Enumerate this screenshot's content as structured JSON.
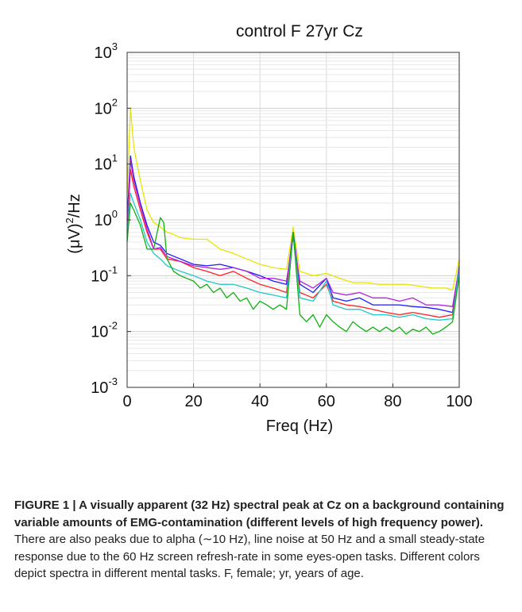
{
  "chart_data": {
    "type": "line",
    "title": "control F 27yr Cz",
    "xlabel": "Freq (Hz)",
    "ylabel_base": "(μV)",
    "ylabel_sup": "2",
    "ylabel_tail": "/Hz",
    "xlim": [
      0,
      100
    ],
    "ylim": [
      0.001,
      1000
    ],
    "yscale": "log",
    "grid": true,
    "x_ticks": [
      "0",
      "20",
      "40",
      "60",
      "80",
      "100"
    ],
    "y_ticks": [
      {
        "base": "10",
        "exp": "-3"
      },
      {
        "base": "10",
        "exp": "-2"
      },
      {
        "base": "10",
        "exp": "-1"
      },
      {
        "base": "10",
        "exp": "0"
      },
      {
        "base": "10",
        "exp": "1"
      },
      {
        "base": "10",
        "exp": "2"
      },
      {
        "base": "10",
        "exp": "3"
      }
    ],
    "series": [
      {
        "color": "#e6e600",
        "points": [
          [
            0,
            3
          ],
          [
            1,
            100
          ],
          [
            2,
            20
          ],
          [
            4,
            5
          ],
          [
            6,
            1.5
          ],
          [
            8,
            0.9
          ],
          [
            10,
            0.75
          ],
          [
            12,
            0.6
          ],
          [
            14,
            0.55
          ],
          [
            16,
            0.48
          ],
          [
            20,
            0.45
          ],
          [
            24,
            0.45
          ],
          [
            28,
            0.3
          ],
          [
            32,
            0.25
          ],
          [
            36,
            0.2
          ],
          [
            40,
            0.16
          ],
          [
            44,
            0.14
          ],
          [
            48,
            0.13
          ],
          [
            50,
            0.75
          ],
          [
            52,
            0.12
          ],
          [
            56,
            0.1
          ],
          [
            60,
            0.11
          ],
          [
            64,
            0.09
          ],
          [
            68,
            0.075
          ],
          [
            72,
            0.075
          ],
          [
            76,
            0.07
          ],
          [
            80,
            0.07
          ],
          [
            84,
            0.07
          ],
          [
            88,
            0.065
          ],
          [
            92,
            0.06
          ],
          [
            96,
            0.06
          ],
          [
            98,
            0.055
          ],
          [
            100,
            0.2
          ]
        ]
      },
      {
        "color": "#1a1aff",
        "points": [
          [
            0,
            1
          ],
          [
            1,
            14
          ],
          [
            2,
            6
          ],
          [
            4,
            2
          ],
          [
            6,
            0.8
          ],
          [
            8,
            0.4
          ],
          [
            10,
            0.35
          ],
          [
            12,
            0.25
          ],
          [
            16,
            0.2
          ],
          [
            20,
            0.16
          ],
          [
            24,
            0.15
          ],
          [
            28,
            0.16
          ],
          [
            32,
            0.14
          ],
          [
            36,
            0.12
          ],
          [
            40,
            0.1
          ],
          [
            44,
            0.08
          ],
          [
            48,
            0.07
          ],
          [
            50,
            0.6
          ],
          [
            52,
            0.07
          ],
          [
            56,
            0.05
          ],
          [
            60,
            0.09
          ],
          [
            62,
            0.04
          ],
          [
            66,
            0.035
          ],
          [
            70,
            0.04
          ],
          [
            74,
            0.03
          ],
          [
            78,
            0.03
          ],
          [
            82,
            0.03
          ],
          [
            86,
            0.028
          ],
          [
            90,
            0.027
          ],
          [
            94,
            0.025
          ],
          [
            98,
            0.022
          ],
          [
            100,
            0.15
          ]
        ]
      },
      {
        "color": "#ff2020",
        "points": [
          [
            0,
            0.6
          ],
          [
            1,
            8
          ],
          [
            2,
            4
          ],
          [
            4,
            1.5
          ],
          [
            6,
            0.6
          ],
          [
            8,
            0.3
          ],
          [
            10,
            0.3
          ],
          [
            12,
            0.2
          ],
          [
            16,
            0.18
          ],
          [
            20,
            0.14
          ],
          [
            24,
            0.12
          ],
          [
            28,
            0.1
          ],
          [
            32,
            0.12
          ],
          [
            36,
            0.09
          ],
          [
            40,
            0.07
          ],
          [
            44,
            0.06
          ],
          [
            48,
            0.05
          ],
          [
            50,
            0.55
          ],
          [
            52,
            0.05
          ],
          [
            56,
            0.04
          ],
          [
            60,
            0.07
          ],
          [
            62,
            0.035
          ],
          [
            66,
            0.03
          ],
          [
            70,
            0.028
          ],
          [
            74,
            0.025
          ],
          [
            78,
            0.022
          ],
          [
            82,
            0.02
          ],
          [
            86,
            0.022
          ],
          [
            90,
            0.02
          ],
          [
            94,
            0.018
          ],
          [
            98,
            0.02
          ],
          [
            100,
            0.12
          ]
        ]
      },
      {
        "color": "#b020e0",
        "points": [
          [
            0,
            0.8
          ],
          [
            1,
            12
          ],
          [
            2,
            5
          ],
          [
            4,
            1.8
          ],
          [
            6,
            0.7
          ],
          [
            8,
            0.3
          ],
          [
            10,
            0.32
          ],
          [
            12,
            0.22
          ],
          [
            16,
            0.18
          ],
          [
            20,
            0.15
          ],
          [
            24,
            0.14
          ],
          [
            28,
            0.13
          ],
          [
            32,
            0.14
          ],
          [
            36,
            0.12
          ],
          [
            40,
            0.09
          ],
          [
            44,
            0.09
          ],
          [
            48,
            0.08
          ],
          [
            50,
            0.5
          ],
          [
            52,
            0.08
          ],
          [
            56,
            0.06
          ],
          [
            60,
            0.09
          ],
          [
            62,
            0.05
          ],
          [
            66,
            0.045
          ],
          [
            70,
            0.05
          ],
          [
            74,
            0.04
          ],
          [
            78,
            0.04
          ],
          [
            82,
            0.035
          ],
          [
            86,
            0.04
          ],
          [
            90,
            0.03
          ],
          [
            94,
            0.03
          ],
          [
            98,
            0.028
          ],
          [
            100,
            0.14
          ]
        ]
      },
      {
        "color": "#20c8c8",
        "points": [
          [
            0,
            0.5
          ],
          [
            1,
            3
          ],
          [
            2,
            2
          ],
          [
            4,
            1
          ],
          [
            6,
            0.4
          ],
          [
            8,
            0.25
          ],
          [
            10,
            0.2
          ],
          [
            12,
            0.15
          ],
          [
            16,
            0.12
          ],
          [
            20,
            0.1
          ],
          [
            24,
            0.08
          ],
          [
            28,
            0.07
          ],
          [
            32,
            0.07
          ],
          [
            36,
            0.06
          ],
          [
            40,
            0.05
          ],
          [
            44,
            0.045
          ],
          [
            48,
            0.04
          ],
          [
            50,
            0.55
          ],
          [
            52,
            0.04
          ],
          [
            56,
            0.035
          ],
          [
            60,
            0.08
          ],
          [
            62,
            0.03
          ],
          [
            66,
            0.025
          ],
          [
            70,
            0.025
          ],
          [
            74,
            0.02
          ],
          [
            78,
            0.02
          ],
          [
            82,
            0.018
          ],
          [
            86,
            0.02
          ],
          [
            90,
            0.017
          ],
          [
            94,
            0.016
          ],
          [
            98,
            0.017
          ],
          [
            100,
            0.13
          ]
        ]
      },
      {
        "color": "#10b010",
        "points": [
          [
            0,
            0.4
          ],
          [
            1,
            2
          ],
          [
            2,
            1.5
          ],
          [
            4,
            0.8
          ],
          [
            6,
            0.3
          ],
          [
            8,
            0.3
          ],
          [
            10,
            1.1
          ],
          [
            11,
            0.9
          ],
          [
            12,
            0.2
          ],
          [
            14,
            0.12
          ],
          [
            16,
            0.1
          ],
          [
            20,
            0.08
          ],
          [
            22,
            0.06
          ],
          [
            24,
            0.07
          ],
          [
            26,
            0.05
          ],
          [
            28,
            0.06
          ],
          [
            30,
            0.04
          ],
          [
            32,
            0.05
          ],
          [
            34,
            0.035
          ],
          [
            36,
            0.04
          ],
          [
            38,
            0.025
          ],
          [
            40,
            0.035
          ],
          [
            42,
            0.03
          ],
          [
            44,
            0.025
          ],
          [
            46,
            0.03
          ],
          [
            48,
            0.025
          ],
          [
            50,
            0.6
          ],
          [
            52,
            0.02
          ],
          [
            54,
            0.015
          ],
          [
            56,
            0.02
          ],
          [
            58,
            0.012
          ],
          [
            60,
            0.02
          ],
          [
            62,
            0.015
          ],
          [
            64,
            0.012
          ],
          [
            66,
            0.01
          ],
          [
            68,
            0.015
          ],
          [
            70,
            0.012
          ],
          [
            72,
            0.01
          ],
          [
            74,
            0.012
          ],
          [
            76,
            0.01
          ],
          [
            78,
            0.012
          ],
          [
            80,
            0.01
          ],
          [
            82,
            0.012
          ],
          [
            84,
            0.009
          ],
          [
            86,
            0.011
          ],
          [
            88,
            0.01
          ],
          [
            90,
            0.012
          ],
          [
            92,
            0.009
          ],
          [
            94,
            0.01
          ],
          [
            96,
            0.012
          ],
          [
            98,
            0.015
          ],
          [
            100,
            0.1
          ]
        ]
      }
    ]
  },
  "caption": {
    "lead": "FIGURE 1 | A visually apparent (32 Hz) spectral peak at Cz on a background containing variable amounts of EMG-contamination (different levels of high frequency power).",
    "body": " There are also peaks due to alpha (∼10 Hz), line noise at 50 Hz and a small steady-state response due to the 60 Hz screen refresh-rate in some eyes-open tasks. Different colors depict spectra in different mental tasks. F, female; yr, years of age."
  }
}
